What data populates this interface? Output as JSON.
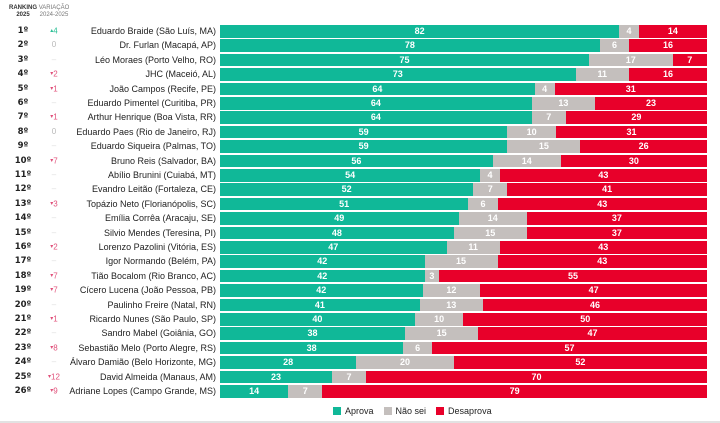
{
  "header": {
    "ranking_label_1": "RANKING",
    "ranking_label_2": "2025",
    "variation_label_1": "VARIAÇÃO",
    "variation_label_2": "2024-2025"
  },
  "colors": {
    "aprova": "#10b898",
    "nao_sei": "#c4bfbd",
    "desaprova": "#e8002a",
    "variation_up": "#2bbf95",
    "variation_down": "#e0507a"
  },
  "chart_data": {
    "type": "bar",
    "orientation": "horizontal-stacked-100",
    "title": "",
    "xlim": [
      0,
      100
    ],
    "legend": {
      "placement": "bottom-center",
      "entries": [
        "Aprova",
        "Não sei",
        "Desaprova"
      ]
    },
    "series_names": [
      "Aprova",
      "Não sei",
      "Desaprova"
    ],
    "rows": [
      {
        "rank": "1º",
        "variation": "4",
        "direction": "up",
        "name": "Eduardo Braide (São Luís, MA)",
        "aprova": 82,
        "nao_sei": 4,
        "desaprova": 14
      },
      {
        "rank": "2º",
        "variation": "0",
        "direction": "zero",
        "name": "Dr. Furlan (Macapá, AP)",
        "aprova": 78,
        "nao_sei": 6,
        "desaprova": 16
      },
      {
        "rank": "3º",
        "variation": "–",
        "direction": "none",
        "name": "Léo Moraes (Porto Velho, RO)",
        "aprova": 75,
        "nao_sei": 17,
        "desaprova": 7
      },
      {
        "rank": "4º",
        "variation": "2",
        "direction": "down",
        "name": "JHC (Maceió, AL)",
        "aprova": 73,
        "nao_sei": 11,
        "desaprova": 16
      },
      {
        "rank": "5º",
        "variation": "1",
        "direction": "down",
        "name": "João Campos (Recife, PE)",
        "aprova": 64,
        "nao_sei": 4,
        "desaprova": 31
      },
      {
        "rank": "6º",
        "variation": "–",
        "direction": "none",
        "name": "Eduardo Pimentel (Curitiba, PR)",
        "aprova": 64,
        "nao_sei": 13,
        "desaprova": 23
      },
      {
        "rank": "7º",
        "variation": "1",
        "direction": "down",
        "name": "Arthur Henrique (Boa Vista, RR)",
        "aprova": 64,
        "nao_sei": 7,
        "desaprova": 29
      },
      {
        "rank": "8º",
        "variation": "0",
        "direction": "zero",
        "name": "Eduardo Paes (Rio de Janeiro, RJ)",
        "aprova": 59,
        "nao_sei": 10,
        "desaprova": 31
      },
      {
        "rank": "9º",
        "variation": "–",
        "direction": "none",
        "name": "Eduardo Siqueira (Palmas, TO)",
        "aprova": 59,
        "nao_sei": 15,
        "desaprova": 26
      },
      {
        "rank": "10º",
        "variation": "7",
        "direction": "down",
        "name": "Bruno Reis (Salvador, BA)",
        "aprova": 56,
        "nao_sei": 14,
        "desaprova": 30
      },
      {
        "rank": "11º",
        "variation": "–",
        "direction": "none",
        "name": "Abílio Brunini (Cuiabá, MT)",
        "aprova": 54,
        "nao_sei": 4,
        "desaprova": 43
      },
      {
        "rank": "12º",
        "variation": "–",
        "direction": "none",
        "name": "Evandro Leitão (Fortaleza, CE)",
        "aprova": 52,
        "nao_sei": 7,
        "desaprova": 41
      },
      {
        "rank": "13º",
        "variation": "3",
        "direction": "down",
        "name": "Topázio Neto (Florianópolis, SC)",
        "aprova": 51,
        "nao_sei": 6,
        "desaprova": 43
      },
      {
        "rank": "14º",
        "variation": "–",
        "direction": "none",
        "name": "Emília Corrêa (Aracaju, SE)",
        "aprova": 49,
        "nao_sei": 14,
        "desaprova": 37
      },
      {
        "rank": "15º",
        "variation": "–",
        "direction": "none",
        "name": "Silvio Mendes (Teresina, PI)",
        "aprova": 48,
        "nao_sei": 15,
        "desaprova": 37
      },
      {
        "rank": "16º",
        "variation": "2",
        "direction": "down",
        "name": "Lorenzo Pazolini (Vitória, ES)",
        "aprova": 47,
        "nao_sei": 11,
        "desaprova": 43
      },
      {
        "rank": "17º",
        "variation": "–",
        "direction": "none",
        "name": "Igor Normando (Belém, PA)",
        "aprova": 42,
        "nao_sei": 15,
        "desaprova": 43
      },
      {
        "rank": "18º",
        "variation": "7",
        "direction": "down",
        "name": "Tião Bocalom (Rio Branco, AC)",
        "aprova": 42,
        "nao_sei": 3,
        "desaprova": 55
      },
      {
        "rank": "19º",
        "variation": "7",
        "direction": "down",
        "name": "Cícero Lucena (João Pessoa, PB)",
        "aprova": 42,
        "nao_sei": 12,
        "desaprova": 47
      },
      {
        "rank": "20º",
        "variation": "–",
        "direction": "none",
        "name": "Paulinho Freire (Natal, RN)",
        "aprova": 41,
        "nao_sei": 13,
        "desaprova": 46
      },
      {
        "rank": "21º",
        "variation": "1",
        "direction": "down",
        "name": "Ricardo Nunes (São Paulo, SP)",
        "aprova": 40,
        "nao_sei": 10,
        "desaprova": 50
      },
      {
        "rank": "22º",
        "variation": "–",
        "direction": "none",
        "name": "Sandro Mabel (Goiânia, GO)",
        "aprova": 38,
        "nao_sei": 15,
        "desaprova": 47
      },
      {
        "rank": "23º",
        "variation": "8",
        "direction": "down",
        "name": "Sebastião Melo (Porto Alegre, RS)",
        "aprova": 38,
        "nao_sei": 6,
        "desaprova": 57
      },
      {
        "rank": "24º",
        "variation": "–",
        "direction": "none",
        "name": "Álvaro Damião (Belo Horizonte, MG)",
        "aprova": 28,
        "nao_sei": 20,
        "desaprova": 52
      },
      {
        "rank": "25º",
        "variation": "12",
        "direction": "down",
        "name": "David Almeida (Manaus, AM)",
        "aprova": 23,
        "nao_sei": 7,
        "desaprova": 70
      },
      {
        "rank": "26º",
        "variation": "9",
        "direction": "down",
        "name": "Adriane Lopes (Campo Grande, MS)",
        "aprova": 14,
        "nao_sei": 7,
        "desaprova": 79
      }
    ]
  },
  "legend": {
    "items": [
      {
        "label": "Aprova",
        "key": "aprova"
      },
      {
        "label": "Não sei",
        "key": "nao_sei"
      },
      {
        "label": "Desaprova",
        "key": "desaprova"
      }
    ]
  }
}
